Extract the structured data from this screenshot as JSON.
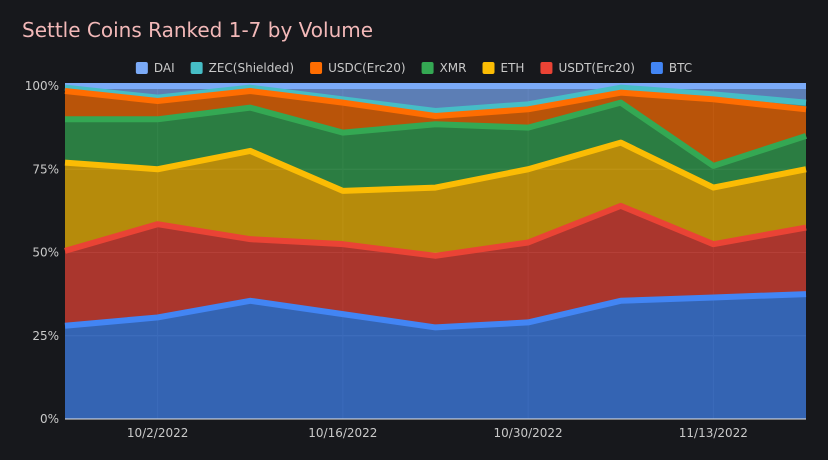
{
  "chart_data": {
    "type": "area",
    "stacked": true,
    "normalized": true,
    "title": "Settle Coins Ranked 1-7 by Volume",
    "xlabel": "",
    "ylabel": "",
    "ylim": [
      0,
      100
    ],
    "yticks": [
      "0%",
      "25%",
      "50%",
      "75%",
      "100%"
    ],
    "xticks": [
      "10/2/2022",
      "10/16/2022",
      "10/30/2022",
      "11/13/2022"
    ],
    "x": [
      "9/25/2022",
      "10/2/2022",
      "10/9/2022",
      "10/16/2022",
      "10/23/2022",
      "10/30/2022",
      "11/6/2022",
      "11/13/2022",
      "11/20/2022"
    ],
    "series": [
      {
        "name": "BTC",
        "color": "#4285f4",
        "values": [
          28,
          30.5,
          35.5,
          31.5,
          27.5,
          29,
          35.5,
          36.5,
          37.5
        ]
      },
      {
        "name": "USDT(Erc20)",
        "color": "#ea4335",
        "values": [
          22.5,
          28,
          18.5,
          21,
          21.5,
          24,
          28.5,
          16,
          20
        ]
      },
      {
        "name": "ETH",
        "color": "#fbbc04",
        "values": [
          26.5,
          16.5,
          26.5,
          16,
          20.5,
          22,
          19,
          17,
          17.5
        ]
      },
      {
        "name": "XMR",
        "color": "#34a853",
        "values": [
          13,
          15,
          13,
          17.5,
          19,
          12.5,
          12,
          6.5,
          10
        ]
      },
      {
        "name": "USDC(Erc20)",
        "color": "#ff6d01",
        "values": [
          8.5,
          5.5,
          5,
          9,
          2.5,
          5.5,
          3,
          20,
          8
        ]
      },
      {
        "name": "ZEC(Shielded)",
        "color": "#46bdc6",
        "values": [
          1,
          1,
          1,
          1,
          1.5,
          1.5,
          1.5,
          1.5,
          2
        ]
      },
      {
        "name": "DAI",
        "color": "#7baaf7",
        "values": [
          0.5,
          3.5,
          0.5,
          4,
          7.5,
          5.5,
          0.5,
          2.5,
          5
        ]
      }
    ],
    "legend_order": [
      "DAI",
      "ZEC(Shielded)",
      "USDC(Erc20)",
      "XMR",
      "ETH",
      "USDT(Erc20)",
      "BTC"
    ],
    "legend_position": "top",
    "grid": true
  }
}
